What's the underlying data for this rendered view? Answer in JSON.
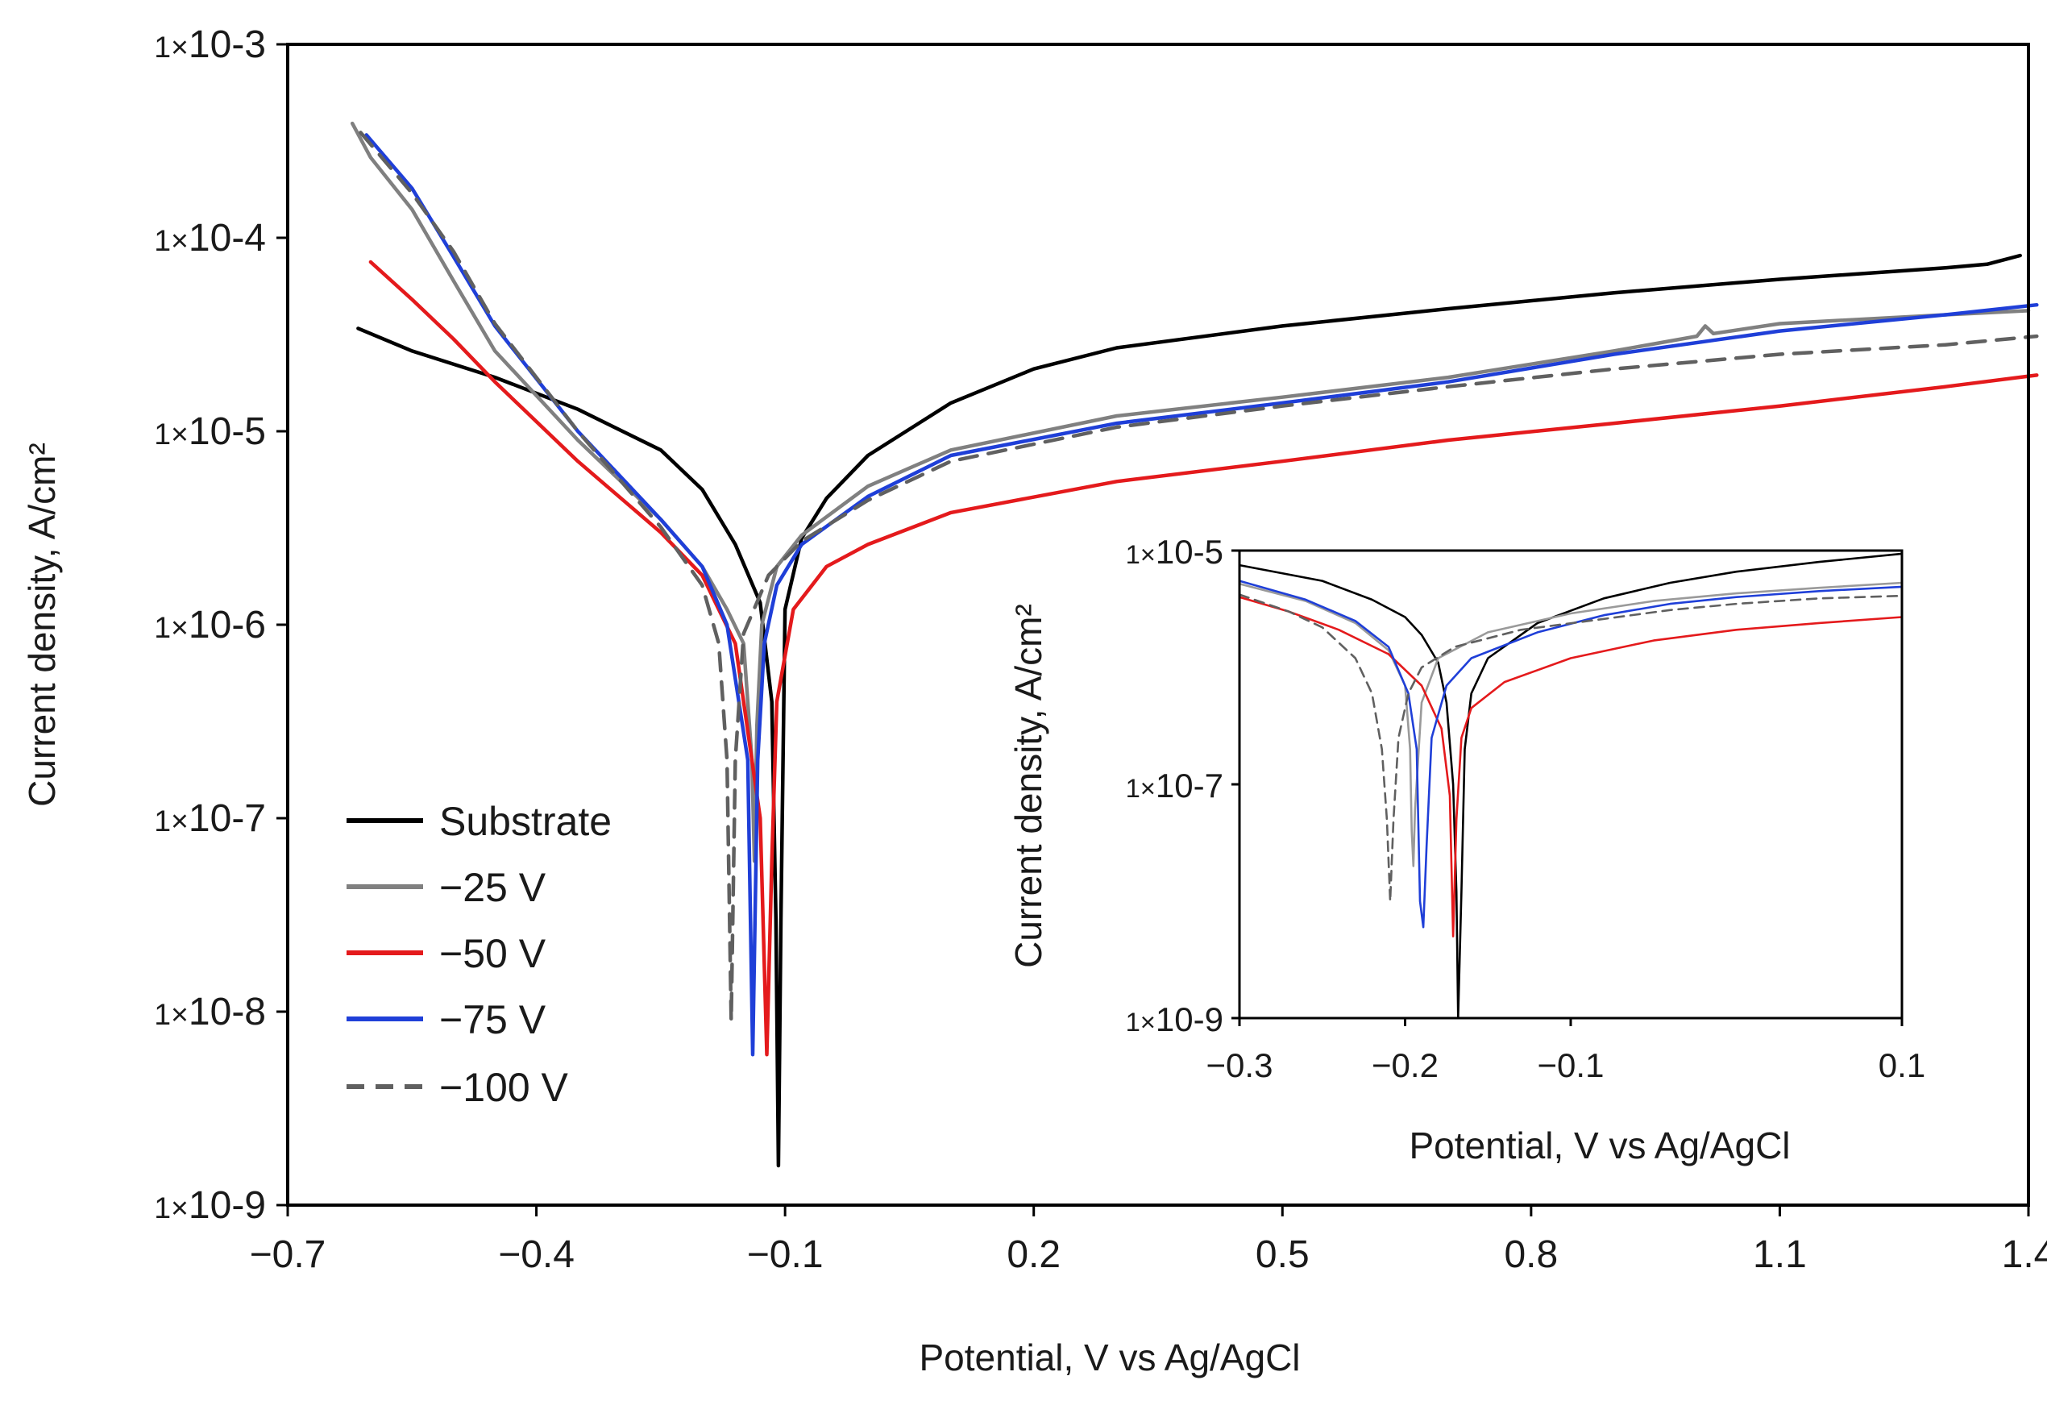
{
  "chart_data": [
    {
      "type": "line",
      "id": "main",
      "xlabel": "Potential, V vs Ag/AgCl",
      "ylabel": "Current density, A/cm²",
      "xlim": [
        -0.7,
        1.4
      ],
      "ylim_log10": [
        -9,
        -3
      ],
      "xticks": [
        -0.7,
        -0.4,
        -0.1,
        0.2,
        0.5,
        0.8,
        1.1,
        1.4
      ],
      "xtick_labels": [
        "−0.7",
        "−0.4",
        "−0.1",
        "0.2",
        "0.5",
        "0.8",
        "1.1",
        "1.4"
      ],
      "yticks_log10": [
        -3,
        -4,
        -5,
        -6,
        -7,
        -8,
        -9
      ],
      "ytick_labels": [
        "1×10-3",
        "1×10-4",
        "1×10-5",
        "1×10-6",
        "1×10-7",
        "1×10-8",
        "1×10-9"
      ],
      "legend_position": "lower-left",
      "series": [
        {
          "name": "Substrate",
          "color": "#000000",
          "dash": false,
          "points": [
            [
              -0.615,
              3.4e-05
            ],
            [
              -0.55,
              2.6e-05
            ],
            [
              -0.45,
              1.9e-05
            ],
            [
              -0.35,
              1.3e-05
            ],
            [
              -0.25,
              8e-06
            ],
            [
              -0.2,
              5e-06
            ],
            [
              -0.16,
              2.6e-06
            ],
            [
              -0.13,
              1.3e-06
            ],
            [
              -0.116,
              4e-07
            ],
            [
              -0.111,
              3e-08
            ],
            [
              -0.108,
              1.6e-09
            ],
            [
              -0.105,
              3e-08
            ],
            [
              -0.1,
              1.2e-06
            ],
            [
              -0.08,
              2.8e-06
            ],
            [
              -0.05,
              4.5e-06
            ],
            [
              0.0,
              7.5e-06
            ],
            [
              0.1,
              1.4e-05
            ],
            [
              0.2,
              2.1e-05
            ],
            [
              0.3,
              2.7e-05
            ],
            [
              0.5,
              3.5e-05
            ],
            [
              0.7,
              4.3e-05
            ],
            [
              0.9,
              5.2e-05
            ],
            [
              1.1,
              6.1e-05
            ],
            [
              1.3,
              7e-05
            ],
            [
              1.35,
              7.3e-05
            ],
            [
              1.39,
              8.1e-05
            ]
          ]
        },
        {
          "name": "−25 V",
          "color": "#808080",
          "dash": false,
          "points": [
            [
              -0.622,
              0.00039
            ],
            [
              -0.6,
              0.00026
            ],
            [
              -0.55,
              0.00014
            ],
            [
              -0.5,
              6e-05
            ],
            [
              -0.45,
              2.6e-05
            ],
            [
              -0.35,
              9e-06
            ],
            [
              -0.25,
              3.5e-06
            ],
            [
              -0.2,
              2e-06
            ],
            [
              -0.17,
              1.2e-06
            ],
            [
              -0.15,
              8e-07
            ],
            [
              -0.14,
              2e-07
            ],
            [
              -0.137,
              6e-08
            ],
            [
              -0.134,
              3e-07
            ],
            [
              -0.128,
              1e-06
            ],
            [
              -0.11,
              2e-06
            ],
            [
              -0.08,
              2.9e-06
            ],
            [
              0.0,
              5.2e-06
            ],
            [
              0.1,
              8e-06
            ],
            [
              0.3,
              1.2e-05
            ],
            [
              0.5,
              1.5e-05
            ],
            [
              0.7,
              1.9e-05
            ],
            [
              0.9,
              2.6e-05
            ],
            [
              1.0,
              3.1e-05
            ],
            [
              1.01,
              3.5e-05
            ],
            [
              1.02,
              3.2e-05
            ],
            [
              1.1,
              3.6e-05
            ],
            [
              1.3,
              4e-05
            ],
            [
              1.4,
              4.2e-05
            ]
          ]
        },
        {
          "name": "−50 V",
          "color": "#e41a1c",
          "dash": false,
          "points": [
            [
              -0.6,
              7.5e-05
            ],
            [
              -0.55,
              4.8e-05
            ],
            [
              -0.5,
              3e-05
            ],
            [
              -0.45,
              1.8e-05
            ],
            [
              -0.35,
              7e-06
            ],
            [
              -0.25,
              3e-06
            ],
            [
              -0.2,
              1.8e-06
            ],
            [
              -0.16,
              8e-07
            ],
            [
              -0.13,
              1e-07
            ],
            [
              -0.122,
              6e-09
            ],
            [
              -0.116,
              6e-08
            ],
            [
              -0.11,
              4e-07
            ],
            [
              -0.09,
              1.2e-06
            ],
            [
              -0.05,
              2e-06
            ],
            [
              0.0,
              2.6e-06
            ],
            [
              0.1,
              3.8e-06
            ],
            [
              0.3,
              5.5e-06
            ],
            [
              0.5,
              7e-06
            ],
            [
              0.7,
              9e-06
            ],
            [
              0.9,
              1.1e-05
            ],
            [
              1.1,
              1.35e-05
            ],
            [
              1.3,
              1.7e-05
            ],
            [
              1.41,
              1.95e-05
            ]
          ]
        },
        {
          "name": "−75 V",
          "color": "#1f3fd8",
          "dash": false,
          "points": [
            [
              -0.605,
              0.00034
            ],
            [
              -0.55,
              0.00018
            ],
            [
              -0.5,
              8e-05
            ],
            [
              -0.45,
              3.5e-05
            ],
            [
              -0.35,
              1e-05
            ],
            [
              -0.25,
              3.5e-06
            ],
            [
              -0.2,
              2e-06
            ],
            [
              -0.17,
              1e-06
            ],
            [
              -0.145,
              2e-07
            ],
            [
              -0.139,
              6e-09
            ],
            [
              -0.133,
              2e-07
            ],
            [
              -0.125,
              8e-07
            ],
            [
              -0.11,
              1.6e-06
            ],
            [
              -0.08,
              2.6e-06
            ],
            [
              0.0,
              4.6e-06
            ],
            [
              0.1,
              7.5e-06
            ],
            [
              0.3,
              1.1e-05
            ],
            [
              0.5,
              1.4e-05
            ],
            [
              0.7,
              1.8e-05
            ],
            [
              0.9,
              2.5e-05
            ],
            [
              1.1,
              3.3e-05
            ],
            [
              1.3,
              4e-05
            ],
            [
              1.41,
              4.5e-05
            ]
          ]
        },
        {
          "name": "−100 V",
          "color": "#606060",
          "dash": true,
          "points": [
            [
              -0.612,
              0.00035
            ],
            [
              -0.55,
              0.00017
            ],
            [
              -0.5,
              8.5e-05
            ],
            [
              -0.45,
              3.6e-05
            ],
            [
              -0.35,
              1e-05
            ],
            [
              -0.25,
              3.2e-06
            ],
            [
              -0.2,
              1.6e-06
            ],
            [
              -0.18,
              8e-07
            ],
            [
              -0.17,
              2e-07
            ],
            [
              -0.165,
              9e-09
            ],
            [
              -0.16,
              2e-07
            ],
            [
              -0.15,
              9e-07
            ],
            [
              -0.12,
              1.8e-06
            ],
            [
              -0.08,
              2.7e-06
            ],
            [
              0.0,
              4.4e-06
            ],
            [
              0.1,
              7e-06
            ],
            [
              0.3,
              1.05e-05
            ],
            [
              0.5,
              1.35e-05
            ],
            [
              0.7,
              1.7e-05
            ],
            [
              0.9,
              2.1e-05
            ],
            [
              1.1,
              2.5e-05
            ],
            [
              1.3,
              2.8e-05
            ],
            [
              1.41,
              3.1e-05
            ]
          ]
        }
      ]
    },
    {
      "type": "line",
      "id": "inset",
      "xlabel": "Potential, V vs Ag/AgCl",
      "ylabel": "Current density, A/cm²",
      "xlim": [
        -0.3,
        0.1
      ],
      "ylim_log10": [
        -9,
        -5
      ],
      "xticks": [
        -0.3,
        -0.2,
        -0.1,
        0.1
      ],
      "xtick_labels": [
        "−0.3",
        "−0.2",
        "−0.1",
        "0.1"
      ],
      "yticks_log10": [
        -5,
        -7,
        -9
      ],
      "ytick_labels": [
        "1×10-5",
        "1×10-7",
        "1×10-9"
      ],
      "series": [
        {
          "name": "Substrate",
          "color": "#000000",
          "dash": false,
          "points": [
            [
              -0.3,
              7.5e-06
            ],
            [
              -0.25,
              5.5e-06
            ],
            [
              -0.22,
              3.8e-06
            ],
            [
              -0.2,
              2.7e-06
            ],
            [
              -0.19,
              1.9e-06
            ],
            [
              -0.18,
              1.1e-06
            ],
            [
              -0.175,
              5e-07
            ],
            [
              -0.171,
              1e-07
            ],
            [
              -0.169,
              1.2e-08
            ],
            [
              -0.168,
              1e-09
            ],
            [
              -0.166,
              1.2e-08
            ],
            [
              -0.164,
              2e-07
            ],
            [
              -0.16,
              6e-07
            ],
            [
              -0.15,
              1.2e-06
            ],
            [
              -0.12,
              2.4e-06
            ],
            [
              -0.08,
              3.9e-06
            ],
            [
              -0.04,
              5.3e-06
            ],
            [
              0.0,
              6.6e-06
            ],
            [
              0.05,
              8e-06
            ],
            [
              0.1,
              9.4e-06
            ]
          ]
        },
        {
          "name": "−25 V",
          "color": "#9a9a9a",
          "dash": false,
          "points": [
            [
              -0.3,
              5.2e-06
            ],
            [
              -0.26,
              3.7e-06
            ],
            [
              -0.23,
              2.4e-06
            ],
            [
              -0.21,
              1.4e-06
            ],
            [
              -0.2,
              7e-07
            ],
            [
              -0.197,
              2e-07
            ],
            [
              -0.196,
              4e-08
            ],
            [
              -0.195,
              2e-08
            ],
            [
              -0.194,
              6e-08
            ],
            [
              -0.19,
              5e-07
            ],
            [
              -0.18,
              1.2e-06
            ],
            [
              -0.15,
              2e-06
            ],
            [
              -0.1,
              2.9e-06
            ],
            [
              -0.05,
              3.7e-06
            ],
            [
              0.0,
              4.3e-06
            ],
            [
              0.05,
              4.8e-06
            ],
            [
              0.1,
              5.3e-06
            ]
          ]
        },
        {
          "name": "−50 V",
          "color": "#e41a1c",
          "dash": false,
          "points": [
            [
              -0.3,
              4e-06
            ],
            [
              -0.27,
              3e-06
            ],
            [
              -0.24,
              2.1e-06
            ],
            [
              -0.21,
              1.3e-06
            ],
            [
              -0.19,
              7e-07
            ],
            [
              -0.178,
              3e-07
            ],
            [
              -0.173,
              8e-08
            ],
            [
              -0.171,
              5e-09
            ],
            [
              -0.169,
              5e-08
            ],
            [
              -0.166,
              2.5e-07
            ],
            [
              -0.16,
              4.5e-07
            ],
            [
              -0.14,
              7.5e-07
            ],
            [
              -0.1,
              1.2e-06
            ],
            [
              -0.05,
              1.7e-06
            ],
            [
              0.0,
              2.1e-06
            ],
            [
              0.05,
              2.4e-06
            ],
            [
              0.1,
              2.7e-06
            ]
          ]
        },
        {
          "name": "−75 V",
          "color": "#1f3fd8",
          "dash": false,
          "points": [
            [
              -0.3,
              5.5e-06
            ],
            [
              -0.26,
              3.8e-06
            ],
            [
              -0.23,
              2.5e-06
            ],
            [
              -0.21,
              1.5e-06
            ],
            [
              -0.198,
              6e-07
            ],
            [
              -0.193,
              2e-07
            ],
            [
              -0.191,
              1e-08
            ],
            [
              -0.189,
              6e-09
            ],
            [
              -0.187,
              3e-08
            ],
            [
              -0.184,
              2.5e-07
            ],
            [
              -0.175,
              7e-07
            ],
            [
              -0.16,
              1.2e-06
            ],
            [
              -0.12,
              2e-06
            ],
            [
              -0.08,
              2.8e-06
            ],
            [
              -0.04,
              3.5e-06
            ],
            [
              0.0,
              4e-06
            ],
            [
              0.05,
              4.5e-06
            ],
            [
              0.1,
              4.9e-06
            ]
          ]
        },
        {
          "name": "−100 V",
          "color": "#606060",
          "dash": true,
          "points": [
            [
              -0.3,
              4.2e-06
            ],
            [
              -0.27,
              3e-06
            ],
            [
              -0.25,
              2.2e-06
            ],
            [
              -0.23,
              1.2e-06
            ],
            [
              -0.22,
              6e-07
            ],
            [
              -0.214,
              2e-07
            ],
            [
              -0.211,
              5e-08
            ],
            [
              -0.209,
              1e-08
            ],
            [
              -0.207,
              5e-08
            ],
            [
              -0.204,
              2.5e-07
            ],
            [
              -0.198,
              6e-07
            ],
            [
              -0.19,
              1e-06
            ],
            [
              -0.17,
              1.5e-06
            ],
            [
              -0.13,
              2.1e-06
            ],
            [
              -0.08,
              2.6e-06
            ],
            [
              -0.04,
              3.1e-06
            ],
            [
              0.0,
              3.5e-06
            ],
            [
              0.05,
              3.9e-06
            ],
            [
              0.1,
              4.1e-06
            ]
          ]
        }
      ]
    }
  ]
}
